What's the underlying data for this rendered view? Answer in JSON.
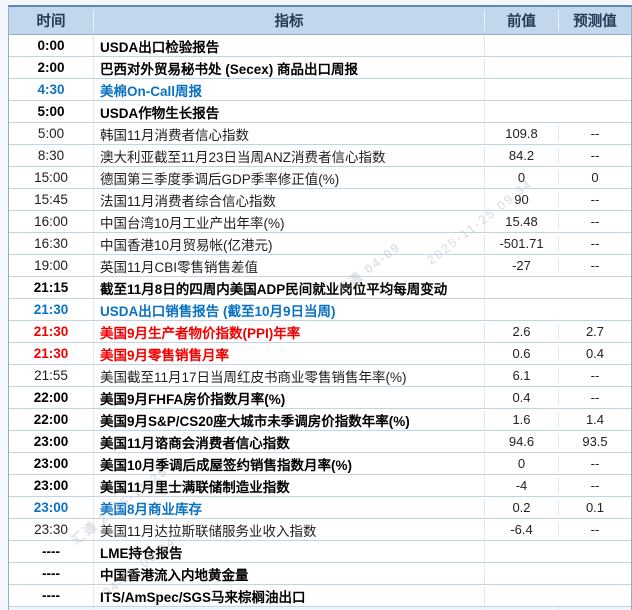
{
  "header": {
    "columns": [
      {
        "key": "time",
        "label": "时间"
      },
      {
        "key": "indicator",
        "label": "指标"
      },
      {
        "key": "prev",
        "label": "前值"
      },
      {
        "key": "forecast",
        "label": "预测值"
      }
    ]
  },
  "table": {
    "rows": [
      {
        "time": "0:00",
        "indicator": "USDA出口检验报告",
        "prev": "",
        "forecast": "",
        "style": "bold"
      },
      {
        "time": "2:00",
        "indicator": "巴西对外贸易秘书处 (Secex) 商品出口周报",
        "prev": "",
        "forecast": "",
        "style": "bold"
      },
      {
        "time": "4:30",
        "indicator": "美棉On-Call周报",
        "prev": "",
        "forecast": "",
        "style": "blue"
      },
      {
        "time": "5:00",
        "indicator": "USDA作物生长报告",
        "prev": "",
        "forecast": "",
        "style": "bold"
      },
      {
        "time": "5:00",
        "indicator": "韩国11月消费者信心指数",
        "prev": "109.8",
        "forecast": "--",
        "style": "normal"
      },
      {
        "time": "8:30",
        "indicator": "澳大利亚截至11月23日当周ANZ消费者信心指数",
        "prev": "84.2",
        "forecast": "--",
        "style": "normal"
      },
      {
        "time": "15:00",
        "indicator": "德国第三季度季调后GDP季率修正值(%)",
        "prev": "0",
        "forecast": "0",
        "style": "normal"
      },
      {
        "time": "15:45",
        "indicator": "法国11月消费者综合信心指数",
        "prev": "90",
        "forecast": "--",
        "style": "normal"
      },
      {
        "time": "16:00",
        "indicator": "中国台湾10月工业产出年率(%)",
        "prev": "15.48",
        "forecast": "--",
        "style": "normal"
      },
      {
        "time": "16:30",
        "indicator": "中国香港10月贸易帐(亿港元)",
        "prev": "-501.71",
        "forecast": "--",
        "style": "normal"
      },
      {
        "time": "19:00",
        "indicator": "英国11月CBI零售销售差值",
        "prev": "-27",
        "forecast": "--",
        "style": "normal"
      },
      {
        "time": "21:15",
        "indicator": "截至11月8日的四周内美国ADP民间就业岗位平均每周变动",
        "prev": "",
        "forecast": "",
        "style": "bold"
      },
      {
        "time": "21:30",
        "indicator": "USDA出口销售报告 (截至10月9日当周)",
        "prev": "",
        "forecast": "",
        "style": "blue"
      },
      {
        "time": "21:30",
        "indicator": "美国9月生产者物价指数(PPI)年率",
        "prev": "2.6",
        "forecast": "2.7",
        "style": "red"
      },
      {
        "time": "21:30",
        "indicator": "美国9月零售销售月率",
        "prev": "0.6",
        "forecast": "0.4",
        "style": "red"
      },
      {
        "time": "21:55",
        "indicator": "美国截至11月17日当周红皮书商业零售销售年率(%)",
        "prev": "6.1",
        "forecast": "--",
        "style": "normal"
      },
      {
        "time": "22:00",
        "indicator": "美国9月FHFA房价指数月率(%)",
        "prev": "0.4",
        "forecast": "--",
        "style": "bold"
      },
      {
        "time": "22:00",
        "indicator": "美国9月S&P/CS20座大城市未季调房价指数年率(%)",
        "prev": "1.6",
        "forecast": "1.4",
        "style": "bold"
      },
      {
        "time": "23:00",
        "indicator": "美国11月谘商会消费者信心指数",
        "prev": "94.6",
        "forecast": "93.5",
        "style": "bold"
      },
      {
        "time": "23:00",
        "indicator": "美国10月季调后成屋签约销售指数月率(%)",
        "prev": "0",
        "forecast": "--",
        "style": "bold"
      },
      {
        "time": "23:00",
        "indicator": "美国11月里士满联储制造业指数",
        "prev": "-4",
        "forecast": "--",
        "style": "bold"
      },
      {
        "time": "23:00",
        "indicator": "美国8月商业库存",
        "prev": "0.2",
        "forecast": "0.1",
        "style": "blue"
      },
      {
        "time": "23:30",
        "indicator": "美国11月达拉斯联储服务业收入指数",
        "prev": "-6.4",
        "forecast": "--",
        "style": "normal"
      },
      {
        "time": "----",
        "indicator": "LME持仓报告",
        "prev": "",
        "forecast": "",
        "style": "bold"
      },
      {
        "time": "----",
        "indicator": "中国香港流入内地黄金量",
        "prev": "",
        "forecast": "",
        "style": "bold"
      },
      {
        "time": "----",
        "indicator": "ITS/AmSpec/SGS马来棕榈油出口",
        "prev": "",
        "forecast": "",
        "style": "bold"
      }
    ]
  },
  "partial_next_row": {
    "time_sliver": "----"
  },
  "watermark": {
    "lines": [
      {
        "text": "2025-11-25 09:34"
      },
      {
        "text": "汇通 04-09"
      },
      {
        "text": "汇通 2025-11-25"
      },
      {
        "text": "04-09 09:34"
      }
    ]
  },
  "colors": {
    "header_bg": "#c2d6ec",
    "header_text": "#253a56",
    "grid_line": "#c3d2e5",
    "outer_border": "#8fadd1",
    "bold_text": "#000000",
    "blue_text": "#0b72c2",
    "red_text": "#f20000",
    "normal_text": "#1e1e1e",
    "watermark": "#b7bdc6"
  }
}
